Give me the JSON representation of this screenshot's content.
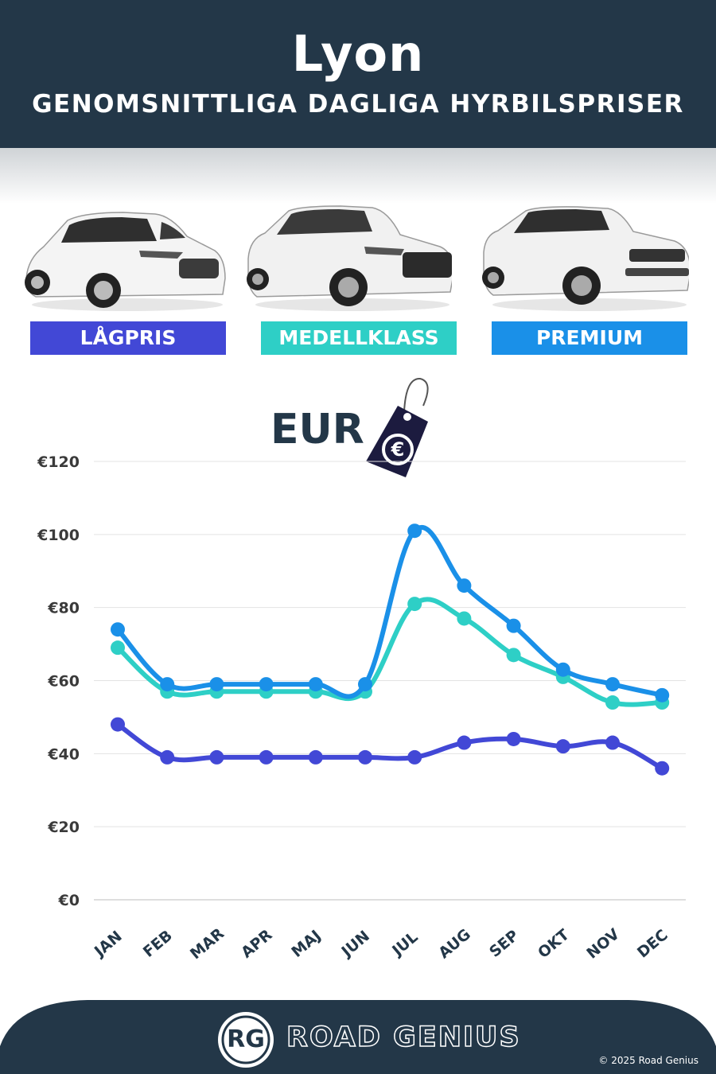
{
  "header": {
    "city": "Lyon",
    "subtitle": "GENOMSNITTLIGA DAGLIGA HYRBILSPRISER"
  },
  "categories_badges": {
    "low": "LÅGPRIS",
    "mid": "MEDELLKLASS",
    "premium": "PREMIUM"
  },
  "currency_label": "EUR",
  "currency_symbol": "€",
  "colors": {
    "header_bg": "#233748",
    "low": "#4248d6",
    "mid": "#2ecfc6",
    "premium": "#1a90e8"
  },
  "chart_data": {
    "type": "line",
    "title": "",
    "xlabel": "",
    "ylabel": "",
    "categories": [
      "JAN",
      "FEB",
      "MAR",
      "APR",
      "MAJ",
      "JUN",
      "JUL",
      "AUG",
      "SEP",
      "OKT",
      "NOV",
      "DEC"
    ],
    "yticks": [
      "€0",
      "€20",
      "€40",
      "€60",
      "€80",
      "€100",
      "€120"
    ],
    "ylim": [
      0,
      120
    ],
    "grid": true,
    "series": [
      {
        "name": "LÅGPRIS",
        "color": "#4248d6",
        "values": [
          48,
          39,
          39,
          39,
          39,
          39,
          39,
          43,
          44,
          42,
          43,
          36
        ]
      },
      {
        "name": "MEDELLKLASS",
        "color": "#2ecfc6",
        "values": [
          69,
          57,
          57,
          57,
          57,
          57,
          81,
          77,
          67,
          61,
          54,
          54
        ]
      },
      {
        "name": "PREMIUM",
        "color": "#1a90e8",
        "values": [
          74,
          59,
          59,
          59,
          59,
          59,
          101,
          86,
          75,
          63,
          59,
          56
        ]
      }
    ]
  },
  "footer": {
    "logo": "RG",
    "brand": "ROAD GENIUS",
    "copyright": "© 2025 Road Genius"
  }
}
